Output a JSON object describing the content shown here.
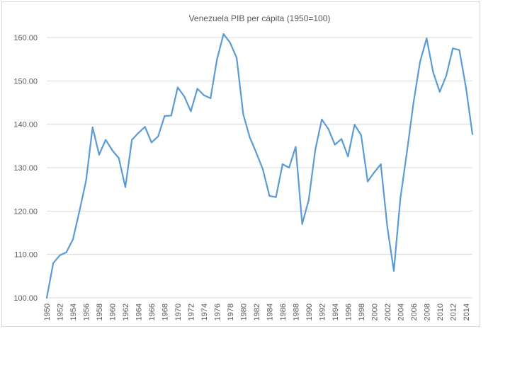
{
  "chart_data": {
    "type": "line",
    "title": "Venezuela PIB per cápita (1950=100)",
    "xlabel": "",
    "ylabel": "",
    "ylim": [
      100,
      160
    ],
    "yticks": [
      "100.00",
      "110.00",
      "120.00",
      "130.00",
      "140.00",
      "150.00",
      "160.00"
    ],
    "xtick_labels": [
      "1950",
      "1952",
      "1954",
      "1956",
      "1958",
      "1960",
      "1962",
      "1964",
      "1966",
      "1968",
      "1970",
      "1972",
      "1974",
      "1976",
      "1978",
      "1980",
      "1982",
      "1984",
      "1986",
      "1988",
      "1990",
      "1992",
      "1994",
      "1996",
      "1998",
      "2000",
      "2002",
      "2004",
      "2006",
      "2008",
      "2010",
      "2012",
      "2014"
    ],
    "grid": true,
    "line_color": "#5b9bd5",
    "x": [
      1950,
      1951,
      1952,
      1953,
      1954,
      1955,
      1956,
      1957,
      1958,
      1959,
      1960,
      1961,
      1962,
      1963,
      1964,
      1965,
      1966,
      1967,
      1968,
      1969,
      1970,
      1971,
      1972,
      1973,
      1974,
      1975,
      1976,
      1977,
      1978,
      1979,
      1980,
      1981,
      1982,
      1983,
      1984,
      1985,
      1986,
      1987,
      1988,
      1989,
      1990,
      1991,
      1992,
      1993,
      1994,
      1995,
      1996,
      1997,
      1998,
      1999,
      2000,
      2001,
      2002,
      2003,
      2004,
      2005,
      2006,
      2007,
      2008,
      2009,
      2010,
      2011,
      2012,
      2013,
      2014,
      2015
    ],
    "values": [
      100.0,
      108.0,
      109.8,
      110.5,
      113.5,
      120.0,
      127.0,
      139.3,
      133.0,
      136.4,
      134.0,
      132.2,
      125.5,
      136.4,
      138.0,
      139.4,
      135.8,
      137.2,
      141.9,
      142.0,
      148.5,
      146.4,
      143.0,
      148.2,
      146.7,
      146.0,
      155.0,
      160.8,
      158.8,
      155.3,
      142.3,
      137.0,
      133.4,
      129.6,
      123.5,
      123.2,
      130.8,
      130.0,
      134.8,
      117.0,
      122.5,
      134.1,
      141.1,
      138.9,
      135.3,
      136.6,
      132.6,
      139.9,
      137.5,
      126.8,
      128.9,
      130.8,
      116.3,
      106.2,
      123.0,
      133.6,
      145.0,
      154.4,
      159.8,
      152.0,
      147.5,
      151.2,
      157.5,
      157.1,
      148.5,
      137.7
    ]
  }
}
